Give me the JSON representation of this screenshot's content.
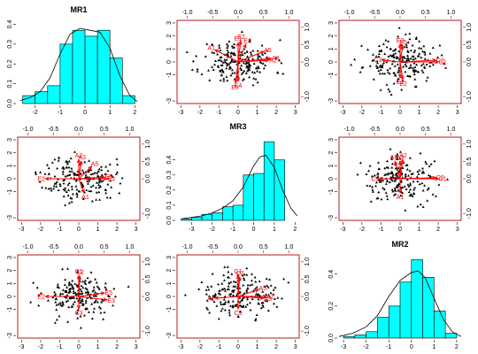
{
  "chart_data": {
    "type": "scatter",
    "layout": "3x3 biplot matrix (diagonal: histograms with density curves; off-diagonal: factor-score scatter with loading arrows)",
    "factors": [
      "MR1",
      "MR3",
      "MR2"
    ],
    "colors": {
      "bar_fill": "#00ffff",
      "bar_stroke": "#000000",
      "arrow": "#ff0000",
      "point": "#000000",
      "density": "#000000",
      "top_right_axis": "#b00000"
    },
    "panels": [
      {
        "type": "histogram",
        "title": "MR1",
        "xlim": [
          -2.7,
          2.2
        ],
        "ylim": [
          0,
          0.42
        ],
        "xticks": [
          "-2",
          "-1",
          "0",
          "1",
          "2"
        ],
        "xtick_values": [
          -2,
          -1,
          0,
          1,
          2
        ],
        "yticks": [
          "0.0",
          "0.1",
          "0.2",
          "0.3",
          "0.4"
        ],
        "ytick_values": [
          0,
          0.1,
          0.2,
          0.3,
          0.4
        ],
        "bins": [
          -2.5,
          -2,
          -1.5,
          -1,
          -0.5,
          0,
          0.5,
          1,
          1.5,
          2
        ],
        "heights": [
          0.04,
          0.06,
          0.09,
          0.3,
          0.37,
          0.34,
          0.37,
          0.23,
          0.04
        ],
        "density": {
          "x": [
            -2.6,
            -2.2,
            -1.8,
            -1.4,
            -1.0,
            -0.6,
            -0.2,
            0.2,
            0.6,
            1.0,
            1.4,
            1.8,
            2.1
          ],
          "y": [
            0.015,
            0.03,
            0.06,
            0.13,
            0.25,
            0.35,
            0.38,
            0.37,
            0.36,
            0.28,
            0.14,
            0.04,
            0.01
          ]
        }
      },
      {
        "type": "biplot",
        "xlim": [
          -3.2,
          3.2
        ],
        "ylim": [
          -3.2,
          3.2
        ],
        "xticks": [
          "-3",
          "-2",
          "-1",
          "0",
          "1",
          "2",
          "3"
        ],
        "xtick_values": [
          -3,
          -2,
          -1,
          0,
          1,
          2,
          3
        ],
        "yticks": [
          "-3",
          "-1",
          "0",
          "1",
          "2",
          "3"
        ],
        "ytick_values": [
          -3,
          -1,
          0,
          1,
          2,
          3
        ],
        "top_ticks": [
          "-1.0",
          "-0.5",
          "0.0",
          "0.5",
          "1.0"
        ],
        "top_tick_values": [
          -1,
          -0.5,
          0,
          0.5,
          1
        ],
        "right_ticks": [
          "-1.0",
          "0.0",
          "0.5",
          "1.0"
        ],
        "right_tick_values": [
          -1,
          0,
          0.5,
          1
        ],
        "arrows": [
          {
            "label": "A1",
            "x": -0.45,
            "y": 0.35
          },
          {
            "label": "A2",
            "x": 0.6,
            "y": 0.05
          },
          {
            "label": "A3",
            "x": 0.65,
            "y": 0.1
          },
          {
            "label": "A5",
            "x": 0.5,
            "y": 0.3
          },
          {
            "label": "E1",
            "x": 0.0,
            "y": 0.55
          },
          {
            "label": "E2",
            "x": 0.05,
            "y": 0.6
          },
          {
            "label": "E3",
            "x": 0.15,
            "y": 0.5
          },
          {
            "label": "E4",
            "x": 0.0,
            "y": -0.55
          },
          {
            "label": "E5",
            "x": -0.05,
            "y": -0.6
          }
        ],
        "seed": 11
      },
      {
        "type": "biplot",
        "xlim": [
          -3.2,
          3.2
        ],
        "ylim": [
          -3.2,
          3.2
        ],
        "xticks": [
          "-3",
          "-2",
          "-1",
          "0",
          "1",
          "2",
          "3"
        ],
        "xtick_values": [
          -3,
          -2,
          -1,
          0,
          1,
          2,
          3
        ],
        "yticks": [
          "-3",
          "-1",
          "0",
          "1",
          "2",
          "3"
        ],
        "ytick_values": [
          -3,
          -1,
          0,
          1,
          2,
          3
        ],
        "top_ticks": [
          "-1.0",
          "-0.5",
          "0.0",
          "0.5",
          "1.0"
        ],
        "top_tick_values": [
          -1,
          -0.5,
          0,
          0.5,
          1
        ],
        "right_ticks": [
          "-1.0",
          "0.0",
          "0.5",
          "1.0"
        ],
        "right_tick_values": [
          -1,
          0,
          0.5,
          1
        ],
        "arrows": [
          {
            "label": "C1",
            "x": 0.75,
            "y": 0.0
          },
          {
            "label": "C2",
            "x": 0.7,
            "y": 0.05
          },
          {
            "label": "C3",
            "x": -0.35,
            "y": 0.05
          },
          {
            "label": "E3",
            "x": 0.0,
            "y": 0.5
          },
          {
            "label": "E5",
            "x": 0.05,
            "y": 0.45
          },
          {
            "label": "E1",
            "x": 0.0,
            "y": -0.45
          },
          {
            "label": "E2",
            "x": 0.05,
            "y": -0.5
          }
        ],
        "seed": 23
      },
      {
        "type": "biplot",
        "xlim": [
          -3.2,
          3.2
        ],
        "ylim": [
          -3.2,
          3.2
        ],
        "xticks": [
          "-3",
          "-2",
          "-1",
          "0",
          "1",
          "2",
          "3"
        ],
        "xtick_values": [
          -3,
          -2,
          -1,
          0,
          1,
          2,
          3
        ],
        "yticks": [
          "-3",
          "-1",
          "0",
          "1",
          "2",
          "3"
        ],
        "ytick_values": [
          -3,
          -1,
          0,
          1,
          2,
          3
        ],
        "top_ticks": [
          "-1.0",
          "-0.5",
          "0.0",
          "0.5",
          "1.0"
        ],
        "top_tick_values": [
          -1,
          -0.5,
          0,
          0.5,
          1
        ],
        "right_ticks": [
          "-1.0",
          "0.0",
          "0.5",
          "1.0"
        ],
        "right_tick_values": [
          -1,
          0,
          0.5,
          1
        ],
        "arrows": [
          {
            "label": "A2",
            "x": 0.0,
            "y": 0.55
          },
          {
            "label": "A3",
            "x": 0.05,
            "y": 0.5
          },
          {
            "label": "A5",
            "x": 0.25,
            "y": 0.35
          },
          {
            "label": "A1",
            "x": 0.1,
            "y": -0.4
          },
          {
            "label": "E2",
            "x": -0.65,
            "y": 0.0
          },
          {
            "label": "E3",
            "x": 0.55,
            "y": 0.0
          },
          {
            "label": "E5",
            "x": 0.5,
            "y": 0.05
          }
        ],
        "seed": 37
      },
      {
        "type": "histogram",
        "title": "MR3",
        "xlim": [
          -3.7,
          2.2
        ],
        "ylim": [
          0,
          0.55
        ],
        "xticks": [
          "-3",
          "-2",
          "-1",
          "0",
          "1",
          "2"
        ],
        "xtick_values": [
          -3,
          -2,
          -1,
          0,
          1,
          2
        ],
        "yticks": [
          "0.0",
          "0.1",
          "0.2",
          "0.3",
          "0.4"
        ],
        "ytick_values": [
          0,
          0.1,
          0.2,
          0.3,
          0.4
        ],
        "bins": [
          -3.5,
          -3,
          -2.5,
          -2,
          -1.5,
          -1,
          -0.5,
          0,
          0.5,
          1,
          1.5
        ],
        "heights": [
          0.01,
          0.02,
          0.04,
          0.05,
          0.09,
          0.1,
          0.3,
          0.31,
          0.52,
          0.4
        ],
        "density": {
          "x": [
            -3.5,
            -3.0,
            -2.5,
            -2.0,
            -1.5,
            -1.0,
            -0.5,
            0.0,
            0.3,
            0.6,
            1.0,
            1.4,
            1.8,
            2.1
          ],
          "y": [
            0.01,
            0.02,
            0.03,
            0.05,
            0.08,
            0.13,
            0.22,
            0.36,
            0.42,
            0.43,
            0.35,
            0.2,
            0.08,
            0.03
          ]
        }
      },
      {
        "type": "biplot",
        "xlim": [
          -3.2,
          3.2
        ],
        "ylim": [
          -3.2,
          3.2
        ],
        "xticks": [
          "-3",
          "-2",
          "-1",
          "0",
          "1",
          "2",
          "3"
        ],
        "xtick_values": [
          -3,
          -2,
          -1,
          0,
          1,
          2,
          3
        ],
        "yticks": [
          "-3",
          "-1",
          "0",
          "1",
          "2",
          "3"
        ],
        "ytick_values": [
          -3,
          -1,
          0,
          1,
          2,
          3
        ],
        "top_ticks": [
          "-1.0",
          "-0.5",
          "0.0",
          "0.5",
          "1.0"
        ],
        "top_tick_values": [
          -1,
          -0.5,
          0,
          0.5,
          1
        ],
        "right_ticks": [
          "-1.0",
          "0.0",
          "0.5",
          "1.0"
        ],
        "right_tick_values": [
          -1,
          0,
          0.5,
          1
        ],
        "arrows": [
          {
            "label": "A2",
            "x": 0.05,
            "y": 0.55
          },
          {
            "label": "A3",
            "x": 0.0,
            "y": 0.5
          },
          {
            "label": "A5",
            "x": -0.1,
            "y": 0.5
          },
          {
            "label": "A1",
            "x": 0.0,
            "y": -0.4
          },
          {
            "label": "C1",
            "x": 0.75,
            "y": 0.0
          },
          {
            "label": "C2",
            "x": 0.7,
            "y": 0.03
          },
          {
            "label": "C3",
            "x": -0.4,
            "y": 0.0
          }
        ],
        "seed": 41
      },
      {
        "type": "biplot",
        "xlim": [
          -3.2,
          3.2
        ],
        "ylim": [
          -3.2,
          3.2
        ],
        "xticks": [
          "-3",
          "-2",
          "-1",
          "0",
          "1",
          "2",
          "3"
        ],
        "xtick_values": [
          -3,
          -2,
          -1,
          0,
          1,
          2,
          3
        ],
        "yticks": [
          "-3",
          "-1",
          "0",
          "1",
          "2",
          "3"
        ],
        "ytick_values": [
          -3,
          -1,
          0,
          1,
          2,
          3
        ],
        "top_ticks": [
          "-1.0",
          "-0.5",
          "0.0",
          "0.5",
          "1.0"
        ],
        "top_tick_values": [
          -1,
          -0.5,
          0,
          0.5,
          1
        ],
        "right_ticks": [
          "-1.0",
          "0.0",
          "0.5",
          "1.0"
        ],
        "right_tick_values": [
          -1,
          0,
          0.5,
          1
        ],
        "arrows": [
          {
            "label": "C1",
            "x": 0.0,
            "y": 0.6
          },
          {
            "label": "C2",
            "x": 0.02,
            "y": 0.58
          },
          {
            "label": "C3",
            "x": 0.0,
            "y": -0.35
          },
          {
            "label": "E2",
            "x": -0.65,
            "y": 0.0
          },
          {
            "label": "E3",
            "x": 0.55,
            "y": -0.1
          },
          {
            "label": "E5",
            "x": 0.5,
            "y": 0.1
          }
        ],
        "seed": 53
      },
      {
        "type": "biplot",
        "xlim": [
          -3.2,
          3.2
        ],
        "ylim": [
          -3.2,
          3.2
        ],
        "xticks": [
          "-3",
          "-2",
          "-1",
          "0",
          "1",
          "2",
          "3"
        ],
        "xtick_values": [
          -3,
          -2,
          -1,
          0,
          1,
          2,
          3
        ],
        "yticks": [
          "-3",
          "-1",
          "0",
          "1",
          "2",
          "3"
        ],
        "ytick_values": [
          -3,
          -1,
          0,
          1,
          2,
          3
        ],
        "top_ticks": [
          "-1.0",
          "-0.5",
          "0.0",
          "0.5",
          "1.0"
        ],
        "top_tick_values": [
          -1,
          -0.5,
          0,
          0.5,
          1
        ],
        "right_ticks": [
          "-1.0",
          "0.0",
          "0.5",
          "1.0"
        ],
        "right_tick_values": [
          -1,
          0,
          0.5,
          1
        ],
        "arrows": [
          {
            "label": "C1",
            "x": 0.0,
            "y": 0.6
          },
          {
            "label": "C2",
            "x": 0.03,
            "y": 0.55
          },
          {
            "label": "C3",
            "x": 0.0,
            "y": -0.35
          },
          {
            "label": "A1",
            "x": -0.45,
            "y": -0.05
          },
          {
            "label": "A2",
            "x": 0.55,
            "y": 0.0
          },
          {
            "label": "A3",
            "x": 0.5,
            "y": -0.05
          },
          {
            "label": "A5",
            "x": 0.4,
            "y": 0.2
          }
        ],
        "seed": 67
      },
      {
        "type": "histogram",
        "title": "MR2",
        "xlim": [
          -3.2,
          2.2
        ],
        "ylim": [
          0,
          0.52
        ],
        "xticks": [
          "-3",
          "-2",
          "-1",
          "0",
          "1",
          "2"
        ],
        "xtick_values": [
          -3,
          -2,
          -1,
          0,
          1,
          2
        ],
        "yticks": [
          "0.0",
          "0.2",
          "0.4"
        ],
        "ytick_values": [
          0,
          0.2,
          0.4
        ],
        "bins": [
          -3,
          -2.5,
          -2,
          -1.5,
          -1,
          -0.5,
          0,
          0.5,
          1,
          1.5,
          2
        ],
        "heights": [
          0.01,
          0.02,
          0.04,
          0.13,
          0.2,
          0.35,
          0.49,
          0.38,
          0.17,
          0.03
        ],
        "density": {
          "x": [
            -3.2,
            -2.6,
            -2.0,
            -1.5,
            -1.0,
            -0.5,
            0.0,
            0.3,
            0.6,
            1.0,
            1.4,
            1.8,
            2.2
          ],
          "y": [
            0.01,
            0.03,
            0.07,
            0.14,
            0.26,
            0.36,
            0.41,
            0.42,
            0.38,
            0.25,
            0.12,
            0.04,
            0.01
          ]
        }
      }
    ]
  }
}
